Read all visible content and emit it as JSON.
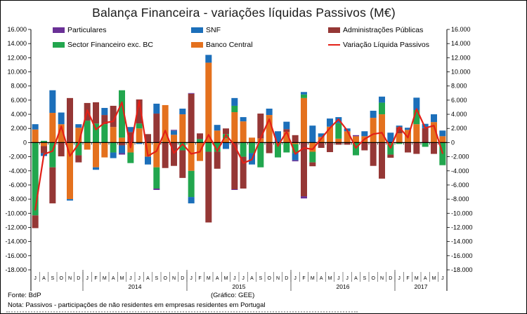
{
  "title": "Balança Financeira - variações líquidas Passivos (M€)",
  "footer": {
    "fonte": "Fonte: BdP",
    "grafico": "(Gráfico: GEE)",
    "nota": "Nota: Passivos - participações de não residentes em empresas residentes em Portugal"
  },
  "legend": {
    "items": [
      {
        "label": "Particulares",
        "color": "#6A3096",
        "type": "box"
      },
      {
        "label": "SNF",
        "color": "#1C6FBA",
        "type": "box"
      },
      {
        "label": "Administrações Públicas",
        "color": "#953735",
        "type": "box"
      },
      {
        "label": "Sector Financeiro exc. BC",
        "color": "#22A64E",
        "type": "box"
      },
      {
        "label": "Banco Central",
        "color": "#E4711E",
        "type": "box"
      },
      {
        "label": "Variação Líquida Passivos",
        "color": "#E32017",
        "type": "line"
      }
    ]
  },
  "chart_data": {
    "type": "stacked-bar-line",
    "title": "Balança Financeira - variações líquidas Passivos (M€)",
    "unit": "M€",
    "ylim": [
      -18000,
      16000
    ],
    "y_step": 2000,
    "y_tick_labels": [
      "16.000",
      "14.000",
      "12.000",
      "10.000",
      "8.000",
      "6.000",
      "4.000",
      "2.000",
      "0",
      "-2.000",
      "-4.000",
      "-6.000",
      "-8.000",
      "-10.000",
      "-12.000",
      "-14.000",
      "-16.000",
      "-18.000"
    ],
    "grid": false,
    "axis_color": "#000000",
    "categories": [
      "J",
      "A",
      "S",
      "O",
      "N",
      "D",
      "J",
      "F",
      "M",
      "A",
      "M",
      "J",
      "J",
      "A",
      "S",
      "O",
      "N",
      "D",
      "J",
      "F",
      "M",
      "A",
      "M",
      "J",
      "J",
      "A",
      "S",
      "O",
      "N",
      "D",
      "J",
      "F",
      "M",
      "A",
      "M",
      "J",
      "J",
      "A",
      "S",
      "O",
      "N",
      "D",
      "J",
      "F",
      "M",
      "A",
      "M",
      "J"
    ],
    "year_groups": [
      {
        "label": "",
        "months": 6
      },
      {
        "label": "2014",
        "months": 12
      },
      {
        "label": "2015",
        "months": 12
      },
      {
        "label": "2016",
        "months": 12
      },
      {
        "label": "2017",
        "months": 6
      }
    ],
    "series": [
      {
        "name": "Banco Central",
        "color": "#E4711E",
        "values": [
          1850,
          -500,
          4200,
          2600,
          -8000,
          2100,
          -1000,
          -3500,
          -2100,
          2200,
          700,
          -1400,
          2000,
          -2000,
          -3500,
          5300,
          1100,
          4000,
          -4000,
          -2600,
          11300,
          1700,
          600,
          4300,
          3000,
          700,
          600,
          3900,
          0,
          1500,
          -200,
          6300,
          -1300,
          800,
          2250,
          550,
          1600,
          900,
          900,
          3500,
          4000,
          0,
          1300,
          1800,
          2600,
          0,
          2900,
          900
        ]
      },
      {
        "name": "Sector Financeiro exc. BC",
        "color": "#22A64E",
        "values": [
          -10300,
          250,
          -3500,
          0,
          0,
          -1800,
          3100,
          2700,
          2600,
          -1400,
          6700,
          -1500,
          700,
          0,
          -3000,
          0,
          0,
          -1100,
          -3700,
          500,
          -1300,
          -1300,
          600,
          900,
          -2000,
          -1500,
          -3500,
          0,
          -2100,
          -1400,
          -1300,
          500,
          -1500,
          0,
          0,
          2200,
          0,
          -1800,
          0,
          0,
          1650,
          -1700,
          -200,
          0,
          2000,
          -600,
          0,
          -3200
        ]
      },
      {
        "name": "Administrações Públicas",
        "color": "#953735",
        "values": [
          -1800,
          -1000,
          -5100,
          -1950,
          6300,
          -1000,
          2500,
          3000,
          1300,
          3000,
          -400,
          1500,
          3400,
          1200,
          4100,
          -3600,
          -3300,
          -3900,
          6900,
          800,
          -10000,
          -2400,
          800,
          -6600,
          -4500,
          0,
          3500,
          -1500,
          0,
          400,
          1050,
          -7600,
          -550,
          -750,
          -1350,
          -300,
          -300,
          0,
          -1100,
          -3300,
          -5100,
          -450,
          900,
          -1400,
          -1600,
          2050,
          -1600,
          0
        ]
      },
      {
        "name": "SNF",
        "color": "#1C6FBA",
        "values": [
          750,
          -400,
          3200,
          1650,
          -200,
          500,
          0,
          -350,
          1000,
          -800,
          -1100,
          700,
          -200,
          -1100,
          1400,
          0,
          600,
          800,
          -900,
          0,
          1100,
          800,
          -900,
          1100,
          600,
          -1600,
          0,
          900,
          1600,
          1050,
          -1000,
          350,
          2400,
          500,
          1150,
          850,
          400,
          0,
          700,
          1000,
          850,
          1400,
          200,
          300,
          1750,
          600,
          1100,
          800
        ]
      },
      {
        "name": "Particulares",
        "color": "#6A3096",
        "values": [
          0,
          0,
          0,
          0,
          0,
          0,
          0,
          0,
          0,
          0,
          -200,
          0,
          0,
          0,
          -200,
          0,
          100,
          0,
          100,
          0,
          0,
          0,
          0,
          -100,
          0,
          0,
          0,
          0,
          0,
          0,
          -150,
          -300,
          0,
          0,
          0,
          0,
          0,
          150,
          0,
          0,
          0,
          0,
          0,
          0,
          0,
          0,
          0,
          0
        ]
      }
    ],
    "line": {
      "name": "Variação Líquida Passivos",
      "color": "#E32017",
      "values": [
        -9500,
        -1650,
        -1200,
        2300,
        -1900,
        -200,
        4600,
        1850,
        2800,
        3000,
        5700,
        -700,
        5900,
        -1900,
        -1200,
        1700,
        -1500,
        -200,
        -1600,
        -1300,
        1100,
        -1200,
        1100,
        -400,
        -2900,
        -2400,
        600,
        3300,
        -500,
        1550,
        -1600,
        -750,
        -950,
        550,
        2050,
        3300,
        1700,
        -750,
        500,
        1200,
        1400,
        -750,
        2200,
        700,
        4750,
        2050,
        2400,
        -1500
      ]
    }
  }
}
